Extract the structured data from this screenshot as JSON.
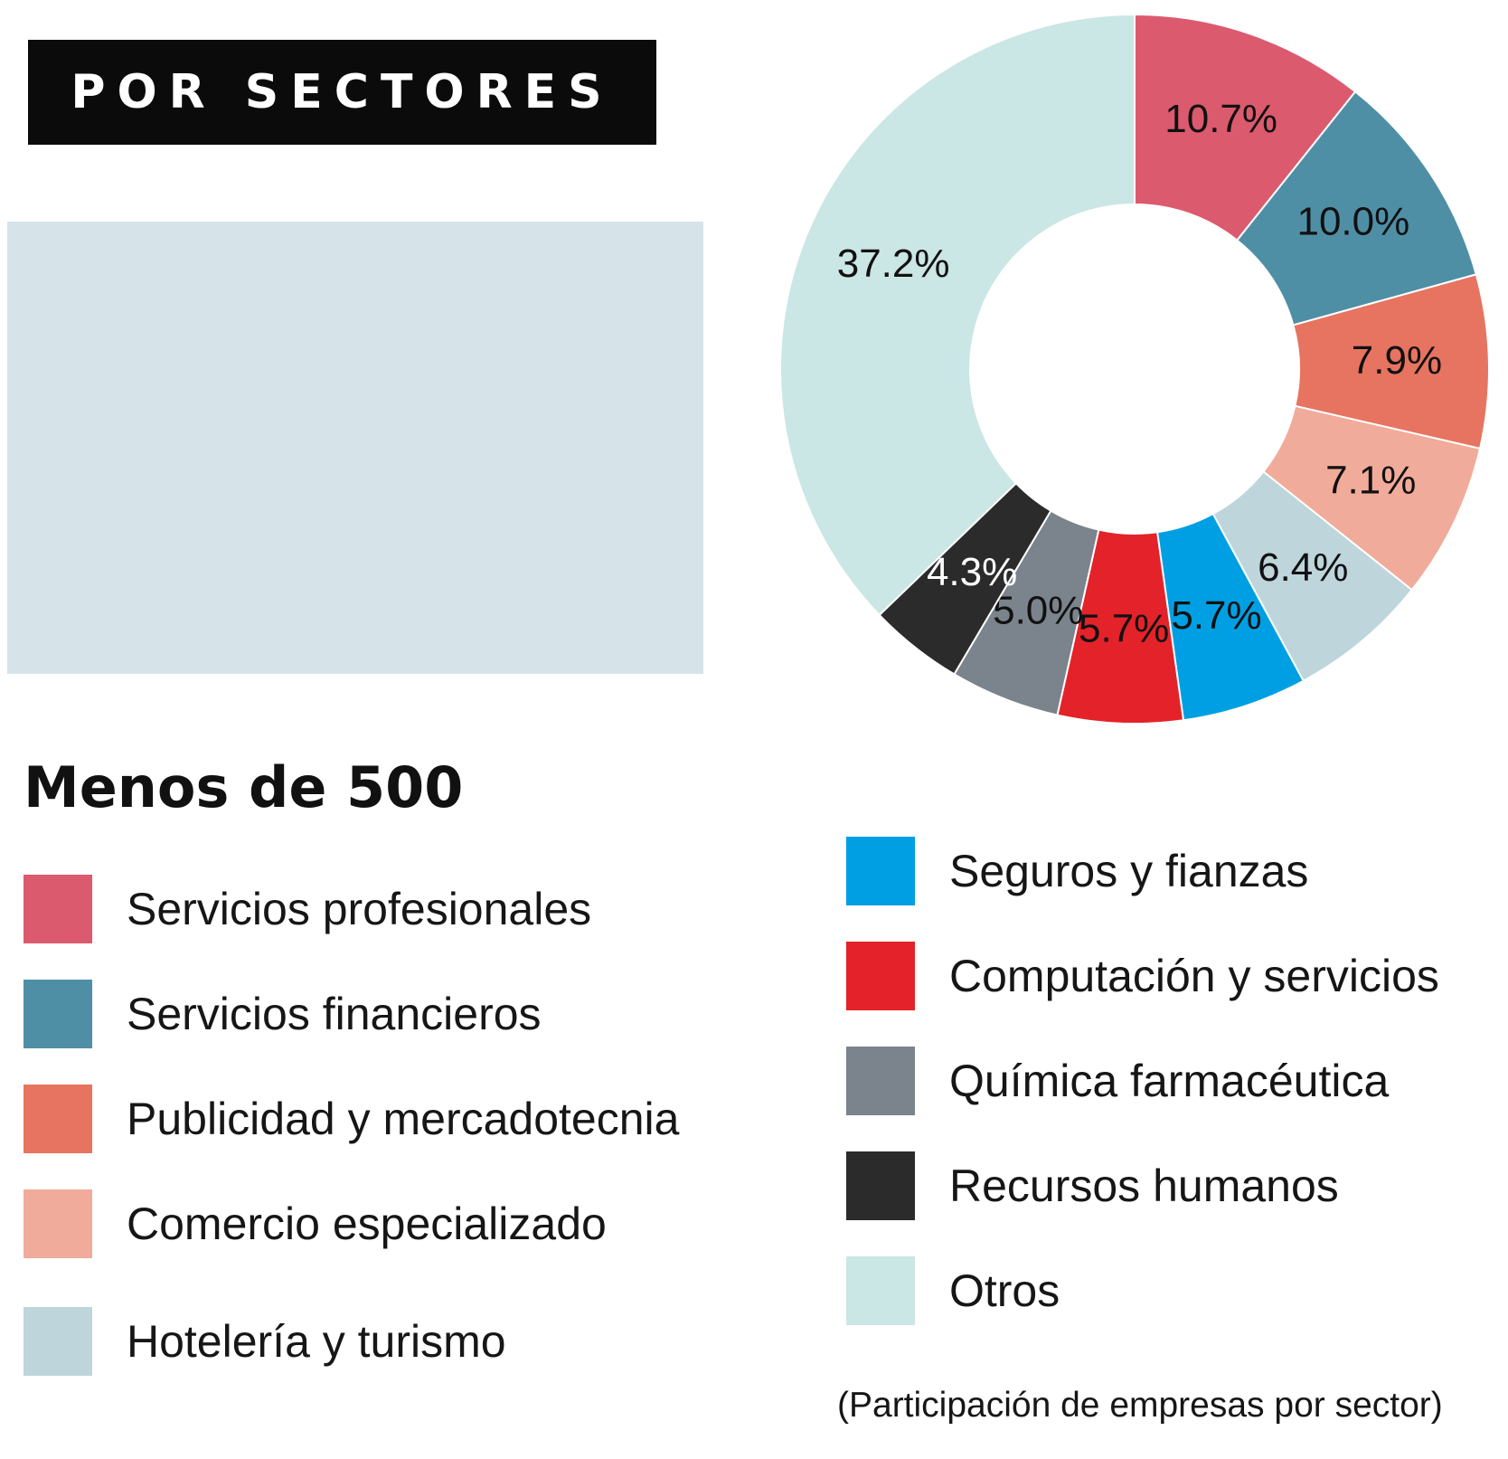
{
  "header": {
    "title": "POR SECTORES"
  },
  "subtitle": "Menos de 500",
  "note": "(Participación de empresas por sector)",
  "chart_data": {
    "type": "pie",
    "variant": "donut",
    "title": "POR SECTORES",
    "unit": "%",
    "slices": [
      {
        "label": "Servicios profesionales",
        "value": 10.7,
        "display": "10.7%",
        "color": "#dc5a6e",
        "label_color": "#111111"
      },
      {
        "label": "Servicios financieros",
        "value": 10.0,
        "display": "10.0%",
        "color": "#4f8fa6",
        "label_color": "#111111"
      },
      {
        "label": "Publicidad y mercadotecnia",
        "value": 7.9,
        "display": "7.9%",
        "color": "#e77460",
        "label_color": "#111111"
      },
      {
        "label": "Comercio especializado",
        "value": 7.1,
        "display": "7.1%",
        "color": "#f1ab9a",
        "label_color": "#111111"
      },
      {
        "label": "Hotelería y turismo",
        "value": 6.4,
        "display": "6.4%",
        "color": "#bdd5db",
        "label_color": "#111111"
      },
      {
        "label": "Seguros y fianzas",
        "value": 5.7,
        "display": "5.7%",
        "color": "#009fe3",
        "label_color": "#111111"
      },
      {
        "label": "Computación y servicios",
        "value": 5.7,
        "display": "5.7%",
        "color": "#e42229",
        "label_color": "#111111"
      },
      {
        "label": "Química farmacéutica",
        "value": 5.0,
        "display": "5.0%",
        "color": "#7b838c",
        "label_color": "#111111"
      },
      {
        "label": "Recursos humanos",
        "value": 4.3,
        "display": "4.3%",
        "color": "#2b2b2b",
        "label_color": "#ffffff"
      },
      {
        "label": "Otros",
        "value": 37.2,
        "display": "37.2%",
        "color": "#cae6e5",
        "label_color": "#111111"
      }
    ],
    "legend": {
      "placement": "bottom",
      "columns": 2,
      "rows_first_column": 5
    }
  }
}
